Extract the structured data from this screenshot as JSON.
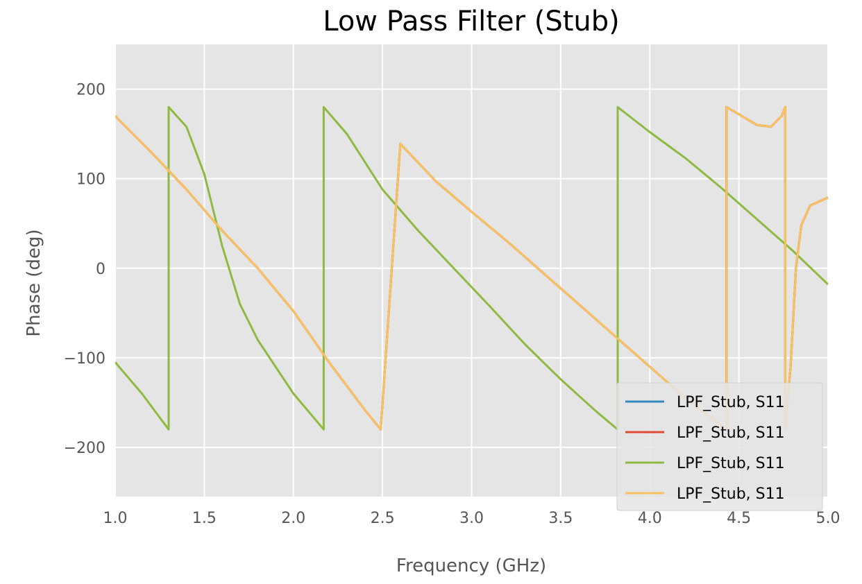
{
  "chart_data": {
    "type": "line",
    "title": "Low Pass Filter (Stub)",
    "xlabel": "Frequency (GHz)",
    "ylabel": "Phase (deg)",
    "xlim": [
      1.0,
      5.0
    ],
    "ylim": [
      -255,
      250
    ],
    "xticks": [
      1.0,
      1.5,
      2.0,
      2.5,
      3.0,
      3.5,
      4.0,
      4.5,
      5.0
    ],
    "xtick_labels": [
      "1.0",
      "1.5",
      "2.0",
      "2.5",
      "3.0",
      "3.5",
      "4.0",
      "4.5",
      "5.0"
    ],
    "yticks": [
      200,
      100,
      0,
      -100,
      -200
    ],
    "ytick_labels": [
      "200",
      "100",
      "0",
      "−100",
      "−200"
    ],
    "grid": true,
    "legend_position": "lower-right",
    "colors": {
      "background": "#e5e5e5",
      "grid": "#ffffff",
      "tick_text": "#555555"
    },
    "series": [
      {
        "name": "LPF_Stub, S11",
        "color": "#348abd",
        "x": [
          1.0,
          1.2,
          1.3,
          1.3,
          1.4,
          1.6,
          1.8,
          2.0,
          2.2,
          2.4,
          2.49,
          2.49,
          2.6,
          2.8,
          3.0,
          3.2,
          3.4,
          3.6,
          3.8,
          4.0,
          4.2,
          4.43,
          4.43,
          4.5,
          4.6,
          4.68,
          4.74,
          4.76,
          4.76,
          4.79,
          4.82,
          4.85,
          4.9,
          5.0
        ],
        "y": [
          170,
          130,
          109,
          109,
          88,
          42,
          0,
          -48,
          -105,
          -158,
          -180,
          -180,
          139,
          97,
          63,
          30,
          -5,
          -40,
          -75,
          -110,
          -145,
          -180,
          180,
          172,
          160,
          158,
          170,
          180,
          -180,
          -110,
          0,
          48,
          70,
          79
        ]
      },
      {
        "name": "LPF_Stub, S11",
        "color": "#e24a33",
        "x": [
          1.0,
          1.2,
          1.3,
          1.3,
          1.4,
          1.6,
          1.8,
          2.0,
          2.2,
          2.4,
          2.49,
          2.49,
          2.6,
          2.8,
          3.0,
          3.2,
          3.4,
          3.6,
          3.8,
          4.0,
          4.2,
          4.43,
          4.43,
          4.5,
          4.6,
          4.68,
          4.74,
          4.76,
          4.76,
          4.79,
          4.82,
          4.85,
          4.9,
          5.0
        ],
        "y": [
          170,
          130,
          109,
          109,
          88,
          42,
          0,
          -48,
          -105,
          -158,
          -180,
          -180,
          139,
          97,
          63,
          30,
          -5,
          -40,
          -75,
          -110,
          -145,
          -180,
          180,
          172,
          160,
          158,
          170,
          180,
          -180,
          -110,
          0,
          48,
          70,
          79
        ]
      },
      {
        "name": "LPF_Stub, S11",
        "color": "#8eba42",
        "x": [
          1.0,
          1.15,
          1.3,
          1.3,
          1.4,
          1.5,
          1.6,
          1.7,
          1.8,
          1.9,
          2.0,
          2.17,
          2.17,
          2.3,
          2.5,
          2.7,
          2.9,
          3.1,
          3.3,
          3.5,
          3.7,
          3.82,
          3.82,
          4.0,
          4.2,
          4.4,
          4.6,
          4.8,
          5.0
        ],
        "y": [
          -105,
          -140,
          -180,
          180,
          158,
          105,
          25,
          -40,
          -80,
          -110,
          -140,
          -180,
          180,
          150,
          88,
          42,
          0,
          -42,
          -85,
          -124,
          -160,
          -180,
          180,
          152,
          123,
          90,
          55,
          20,
          -18
        ]
      },
      {
        "name": "LPF_Stub, S11",
        "color": "#fbc15e",
        "x": [
          1.0,
          1.2,
          1.3,
          1.3,
          1.4,
          1.6,
          1.8,
          2.0,
          2.2,
          2.4,
          2.49,
          2.49,
          2.6,
          2.8,
          3.0,
          3.2,
          3.4,
          3.6,
          3.8,
          4.0,
          4.2,
          4.43,
          4.43,
          4.5,
          4.6,
          4.68,
          4.74,
          4.76,
          4.76,
          4.79,
          4.82,
          4.85,
          4.9,
          5.0
        ],
        "y": [
          170,
          130,
          109,
          109,
          88,
          42,
          0,
          -48,
          -105,
          -158,
          -180,
          -180,
          139,
          97,
          63,
          30,
          -5,
          -40,
          -75,
          -110,
          -145,
          -180,
          180,
          172,
          160,
          158,
          170,
          180,
          -180,
          -110,
          0,
          48,
          70,
          79
        ]
      }
    ]
  }
}
